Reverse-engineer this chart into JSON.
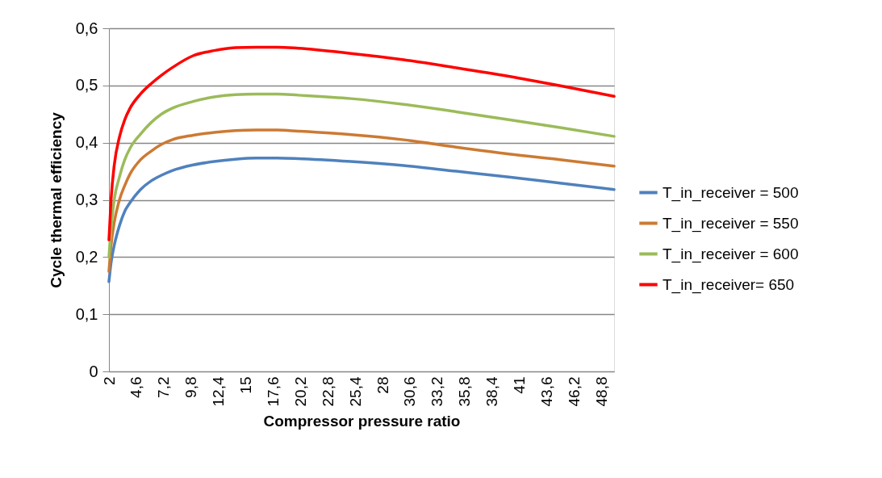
{
  "chart_data": {
    "type": "line",
    "xlabel": "Compressor pressure ratio",
    "ylabel": "Cycle thermal efficiency",
    "x": [
      2,
      2.2,
      2.5,
      3,
      3.5,
      4,
      5,
      6,
      7,
      8,
      10,
      12,
      14,
      16,
      18,
      20,
      25,
      30,
      35,
      40,
      45,
      50
    ],
    "series": [
      {
        "name": "T_in_receiver = 500",
        "color": "#4f81bd",
        "values": [
          0.157,
          0.19,
          0.22,
          0.255,
          0.28,
          0.295,
          0.318,
          0.333,
          0.343,
          0.351,
          0.361,
          0.367,
          0.371,
          0.373,
          0.373,
          0.372,
          0.367,
          0.36,
          0.35,
          0.34,
          0.329,
          0.318
        ]
      },
      {
        "name": "T_in_receiver = 550",
        "color": "#cc7a33",
        "values": [
          0.175,
          0.22,
          0.26,
          0.3,
          0.325,
          0.345,
          0.37,
          0.385,
          0.397,
          0.405,
          0.413,
          0.418,
          0.421,
          0.422,
          0.422,
          0.42,
          0.414,
          0.405,
          0.392,
          0.38,
          0.37,
          0.359
        ]
      },
      {
        "name": "T_in_receiver = 600",
        "color": "#9bbb59",
        "values": [
          0.2,
          0.25,
          0.3,
          0.34,
          0.37,
          0.39,
          0.415,
          0.435,
          0.45,
          0.46,
          0.472,
          0.48,
          0.484,
          0.485,
          0.485,
          0.483,
          0.477,
          0.467,
          0.454,
          0.44,
          0.426,
          0.411
        ]
      },
      {
        "name": "T_in_receiver= 650",
        "color": "#ff0000",
        "values": [
          0.23,
          0.3,
          0.36,
          0.41,
          0.44,
          0.46,
          0.485,
          0.503,
          0.518,
          0.531,
          0.552,
          0.561,
          0.566,
          0.567,
          0.567,
          0.565,
          0.556,
          0.545,
          0.531,
          0.516,
          0.499,
          0.481
        ]
      }
    ],
    "xlim": [
      2,
      50
    ],
    "xticks": [
      2,
      {
        "value": 4.6,
        "label": "4,6"
      },
      {
        "value": 7.2,
        "label": "7,2"
      },
      {
        "value": 9.8,
        "label": "9,8"
      },
      {
        "value": 12.4,
        "label": "12,4"
      },
      15,
      {
        "value": 17.6,
        "label": "17,6"
      },
      {
        "value": 20.2,
        "label": "20,2"
      },
      {
        "value": 22.8,
        "label": "22,8"
      },
      {
        "value": 25.4,
        "label": "25,4"
      },
      28,
      {
        "value": 30.6,
        "label": "30,6"
      },
      {
        "value": 33.2,
        "label": "33,2"
      },
      {
        "value": 35.8,
        "label": "35,8"
      },
      {
        "value": 38.4,
        "label": "38,4"
      },
      41,
      {
        "value": 43.6,
        "label": "43,6"
      },
      {
        "value": 46.2,
        "label": "46,2"
      },
      {
        "value": 48.8,
        "label": "48,8"
      }
    ],
    "ylim": [
      0,
      0.6
    ],
    "yticks": [
      0,
      {
        "value": 0.1,
        "label": "0,1"
      },
      {
        "value": 0.2,
        "label": "0,2"
      },
      {
        "value": 0.3,
        "label": "0,3"
      },
      {
        "value": 0.4,
        "label": "0,4"
      },
      {
        "value": 0.5,
        "label": "0,5"
      },
      {
        "value": 0.6,
        "label": "0,6"
      }
    ],
    "grid": "y",
    "legend": "right",
    "marker": "none",
    "line_style": "solid"
  }
}
